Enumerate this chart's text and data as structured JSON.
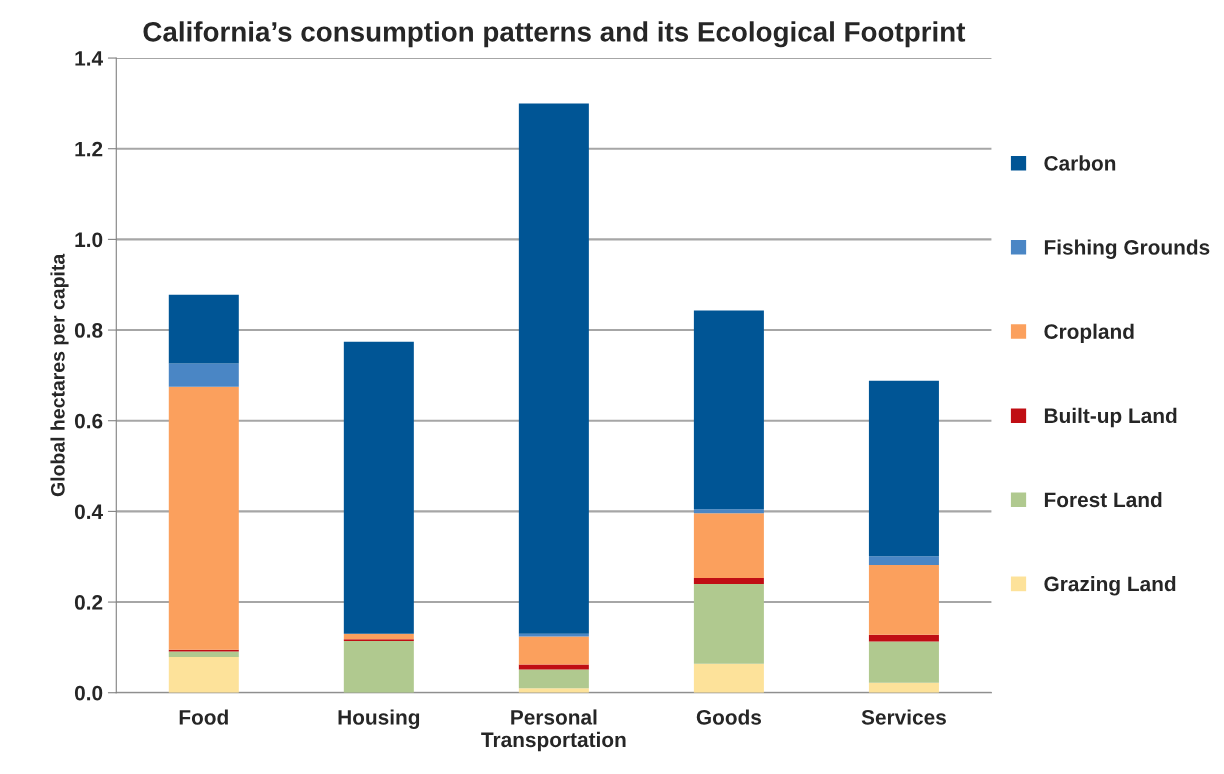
{
  "chart_data": {
    "type": "bar",
    "title": "California’s consumption patterns and its Ecological Footprint",
    "ylabel": "Global hectares per capita",
    "categories": [
      "Food",
      "Housing",
      "Personal\nTransportation",
      "Goods",
      "Services"
    ],
    "stacked": true,
    "ylim": [
      0,
      1.4
    ],
    "yticks": [
      {
        "value": 0,
        "label": "0.0"
      },
      0.2,
      0.4,
      0.6,
      0.8,
      {
        "value": 1,
        "label": "1.0"
      },
      1.2,
      1.4
    ],
    "grid": "y",
    "legend": "right",
    "series": [
      {
        "name": "Grazing Land",
        "color": "#fde29a",
        "values": [
          0.079,
          0,
          0.01,
          0.064,
          0.022
        ]
      },
      {
        "name": "Forest Land",
        "color": "#b0c98f",
        "values": [
          0.012,
          0.114,
          0.041,
          0.176,
          0.091
        ]
      },
      {
        "name": "Built-up Land",
        "color": "#c00e14",
        "values": [
          0.004,
          0.004,
          0.011,
          0.013,
          0.015
        ]
      },
      {
        "name": "Cropland",
        "color": "#fba05d",
        "values": [
          0.58,
          0.012,
          0.062,
          0.143,
          0.154
        ]
      },
      {
        "name": "Fishing Grounds",
        "color": "#4a86c5",
        "values": [
          0.051,
          0,
          0.006,
          0.009,
          0.019
        ]
      },
      {
        "name": "Carbon",
        "color": "#005595",
        "values": [
          0.152,
          0.644,
          1.17,
          0.438,
          0.387
        ]
      }
    ]
  }
}
